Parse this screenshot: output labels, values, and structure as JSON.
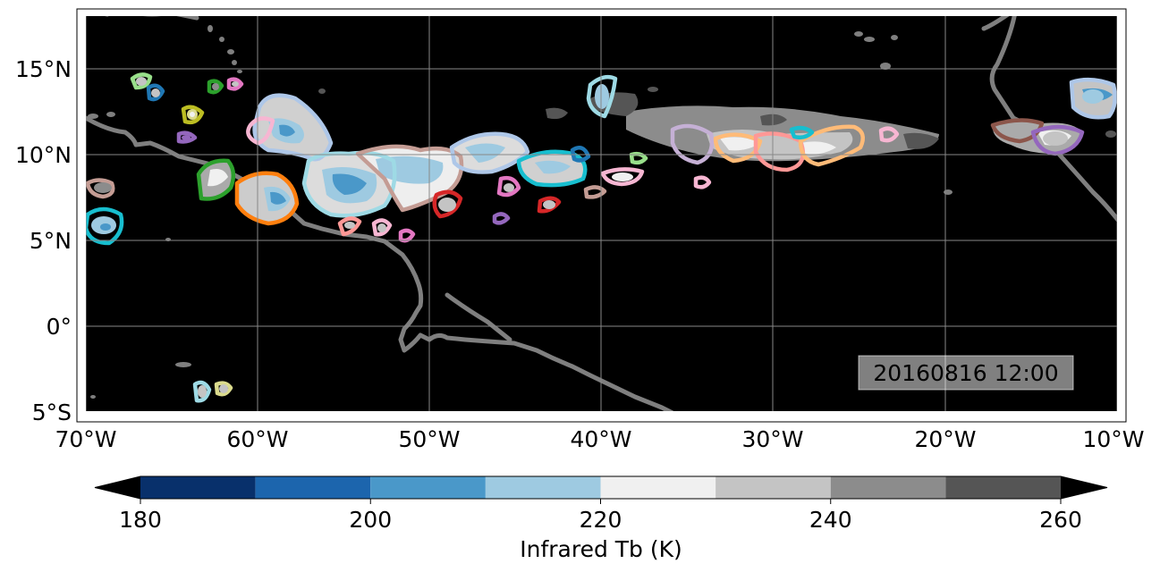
{
  "map": {
    "timestamp": "20160816 12:00",
    "lon_ticks": [
      "70°W",
      "60°W",
      "50°W",
      "40°W",
      "30°W",
      "20°W",
      "10°W"
    ],
    "lat_ticks": [
      "15°N",
      "10°N",
      "5°N",
      "0°",
      "5°S"
    ],
    "extent": {
      "lon": [
        -70,
        -10
      ],
      "lat": [
        -5,
        18
      ]
    },
    "background_color": "#000000",
    "coastline_color": "#7f7f7f"
  },
  "colorbar": {
    "label": "Infrared Tb (K)",
    "ticks": [
      "180",
      "200",
      "220",
      "240",
      "260"
    ],
    "levels": [
      180,
      190,
      200,
      210,
      220,
      230,
      240,
      250,
      260
    ],
    "colors": [
      "#08306b",
      "#1c65ad",
      "#4a98c9",
      "#9ecae1",
      "#f0f0f0",
      "#c4c4c4",
      "#8c8c8c",
      "#555555"
    ],
    "extend": "both",
    "under_color": "#000000",
    "over_color": "#000000"
  },
  "track_colors": [
    "#1f77b4",
    "#ff7f0e",
    "#2ca02c",
    "#d62728",
    "#9467bd",
    "#8c564b",
    "#e377c2",
    "#7f7f7f",
    "#bcbd22",
    "#17becf",
    "#aec7e8",
    "#ffbb78",
    "#98df8a",
    "#ff9896",
    "#c5b0d5",
    "#c49c94",
    "#f7b6d2",
    "#dbdb8d",
    "#9edae5"
  ]
}
